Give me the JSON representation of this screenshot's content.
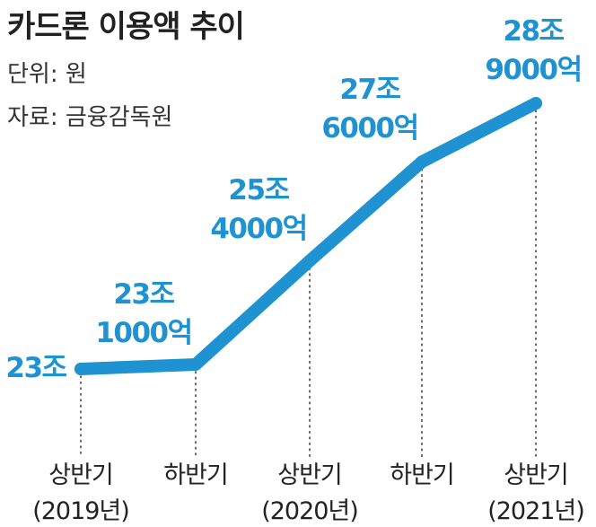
{
  "header": {
    "title": "카드론 이용액 추이",
    "unit": "단위: 원",
    "source": "자료: 금융감독원"
  },
  "chart_data": {
    "type": "line",
    "title": "카드론 이용액 추이",
    "xlabel": "",
    "ylabel": "",
    "unit": "원",
    "categories": [
      [
        "상반기",
        "(2019년)"
      ],
      [
        "하반기",
        ""
      ],
      [
        "상반기",
        "(2020년)"
      ],
      [
        "하반기",
        ""
      ],
      [
        "상반기",
        "(2021년)"
      ]
    ],
    "values": [
      230000,
      231000,
      254000,
      276000,
      289000
    ],
    "value_unit": "억",
    "data_labels": [
      [
        "23조"
      ],
      [
        "23조",
        "1000억"
      ],
      [
        "25조",
        "4000억"
      ],
      [
        "27조",
        "6000억"
      ],
      [
        "28조",
        "9000억"
      ]
    ],
    "grid": false,
    "legend": "none",
    "colors": {
      "line": "#1f93d2",
      "label": "#1f93d2",
      "guide": "#444444",
      "text": "#222222"
    }
  }
}
